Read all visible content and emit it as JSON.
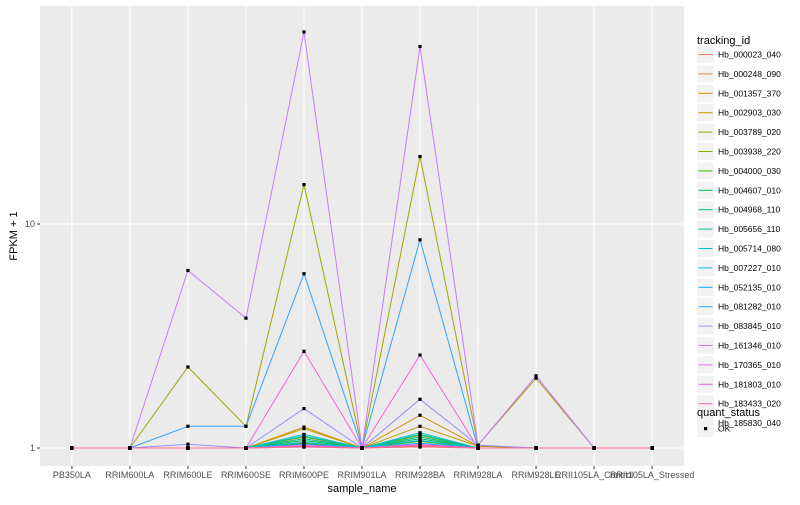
{
  "chart_data": {
    "type": "line",
    "x_field": "sample_name",
    "xlabel": "sample_name",
    "ylabel": "FPKM + 1",
    "y_scale": "log10",
    "ylim": [
      0.9,
      100
    ],
    "y_ticks": [
      1,
      10
    ],
    "y_tick_labels": [
      "1",
      "10"
    ],
    "categories": [
      "PB350LA",
      "RRIM600LA",
      "RRIM600LE",
      "RRIM600SE",
      "RRIM600PE",
      "RRIM901LA",
      "RRIM928BA",
      "RRIM928LA",
      "RRIM928LE",
      "RRII105LA_Control",
      "RRII105LA_Stressed"
    ],
    "legend_colour_title": "tracking_id",
    "legend_shape_title": "quant_status",
    "legend_shape_entries": [
      "OK"
    ],
    "series": [
      {
        "name": "Hb_000023_040",
        "color": "#F8766D",
        "values": [
          1,
          1,
          1,
          1,
          1.01,
          1,
          1.01,
          1,
          1,
          1,
          1
        ]
      },
      {
        "name": "Hb_000248_090",
        "color": "#EA8331",
        "values": [
          1,
          1,
          1,
          1,
          1.02,
          1,
          1.02,
          1,
          1,
          1,
          1
        ]
      },
      {
        "name": "Hb_001357_370",
        "color": "#D89000",
        "values": [
          1,
          1,
          1,
          1,
          1.24,
          1,
          1.4,
          1.02,
          1,
          1,
          1
        ]
      },
      {
        "name": "Hb_002903_030",
        "color": "#C09B00",
        "values": [
          1,
          1,
          1,
          1,
          1.22,
          1,
          1.25,
          1.02,
          1,
          1,
          1
        ]
      },
      {
        "name": "Hb_003789_020",
        "color": "#A3A500",
        "values": [
          1,
          1,
          2.3,
          1.25,
          15,
          1,
          20,
          1.03,
          2.05,
          1,
          1
        ]
      },
      {
        "name": "Hb_003938_220",
        "color": "#7CAE00",
        "values": [
          1,
          1,
          1,
          1,
          1.12,
          1,
          1.14,
          1,
          1,
          1,
          1
        ]
      },
      {
        "name": "Hb_004000_030",
        "color": "#39B600",
        "values": [
          1,
          1,
          1,
          1,
          1.05,
          1,
          1.07,
          1,
          1,
          1,
          1
        ]
      },
      {
        "name": "Hb_004607_010",
        "color": "#00BB4E",
        "values": [
          1,
          1,
          1,
          1,
          1.08,
          1,
          1.1,
          1,
          1,
          1,
          1
        ]
      },
      {
        "name": "Hb_004968_110",
        "color": "#00BF7D",
        "values": [
          1,
          1,
          1,
          1,
          1.1,
          1,
          1.12,
          1,
          1,
          1,
          1
        ]
      },
      {
        "name": "Hb_005656_110",
        "color": "#00C1A3",
        "values": [
          1,
          1,
          1,
          1,
          1.13,
          1,
          1.15,
          1,
          1,
          1,
          1
        ]
      },
      {
        "name": "Hb_005714_080",
        "color": "#00BFC4",
        "values": [
          1,
          1,
          1,
          1,
          1.15,
          1,
          1.17,
          1,
          1,
          1,
          1
        ]
      },
      {
        "name": "Hb_007227_010",
        "color": "#00BAE0",
        "values": [
          1,
          1,
          1,
          1,
          1.06,
          1,
          1.08,
          1,
          1,
          1,
          1
        ]
      },
      {
        "name": "Hb_052135_010",
        "color": "#00B0F6",
        "values": [
          1,
          1,
          1,
          1,
          1.04,
          1,
          1.05,
          1,
          1,
          1,
          1
        ]
      },
      {
        "name": "Hb_081282_010",
        "color": "#35A2FF",
        "values": [
          1,
          1,
          1.25,
          1.25,
          6,
          1,
          8.5,
          1,
          1,
          1,
          1
        ]
      },
      {
        "name": "Hb_083845_010",
        "color": "#9590FF",
        "values": [
          1,
          1,
          1.04,
          1,
          1.5,
          1,
          1.65,
          1.03,
          1,
          1,
          1
        ]
      },
      {
        "name": "Hb_161346_010",
        "color": "#C77CFF",
        "values": [
          1,
          1,
          6.2,
          3.8,
          72,
          1,
          62,
          1.03,
          2.1,
          1,
          1
        ]
      },
      {
        "name": "Hb_170365_010",
        "color": "#E76BF3",
        "values": [
          1,
          1,
          1,
          1,
          1.03,
          1,
          1.04,
          1,
          1,
          1,
          1
        ]
      },
      {
        "name": "Hb_181803_010",
        "color": "#FA62DB",
        "values": [
          1,
          1,
          1,
          1,
          2.7,
          1,
          2.6,
          1,
          1,
          1,
          1
        ]
      },
      {
        "name": "Hb_183433_020",
        "color": "#FF62BC",
        "values": [
          1,
          1,
          1,
          1,
          1.02,
          1,
          1.03,
          1,
          1,
          1,
          1
        ]
      },
      {
        "name": "Hb_185830_040",
        "color": "#FF6C91",
        "values": [
          1,
          1,
          1,
          1,
          1.01,
          1,
          1.02,
          1,
          1,
          1,
          1
        ]
      }
    ]
  }
}
